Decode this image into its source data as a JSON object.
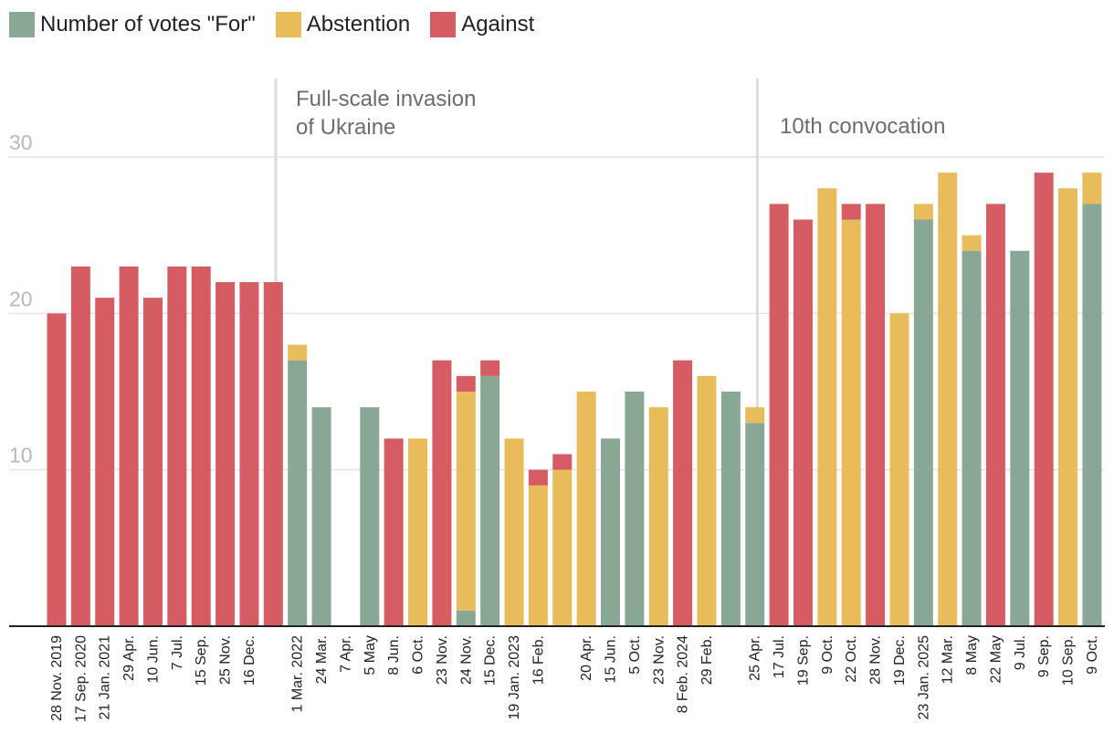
{
  "legend": {
    "for": "Number of votes \"For\"",
    "abstention": "Abstention",
    "against": "Against"
  },
  "colors": {
    "for": "#89a795",
    "abstention": "#e8bb5b",
    "against": "#d55c63"
  },
  "annotations": {
    "invasion_line1": "Full-scale invasion",
    "invasion_line2": "of Ukraine",
    "convocation": "10th convocation"
  },
  "chart_data": {
    "type": "bar",
    "stacked": true,
    "title": "",
    "xlabel": "",
    "ylabel": "",
    "ylim": [
      0,
      30
    ],
    "yticks": [
      10,
      20,
      30
    ],
    "grid": true,
    "legend_position": "top-left",
    "categories": [
      "28 Nov. 2019",
      "17 Sep. 2020",
      "21 Jan. 2021",
      "29 Apr.",
      "10 Jun.",
      "7 Jul.",
      "15 Sep.",
      "25 Nov.",
      "16 Dec.",
      "",
      "1 Mar. 2022",
      "24 Mar.",
      "7 Apr.",
      "5 May",
      "8 Jun.",
      "6 Oct.",
      "23 Nov.",
      "24 Nov.",
      "15 Dec.",
      "19 Jan. 2023",
      "16 Feb.",
      "",
      "20 Apr.",
      "15 Jun.",
      "5 Oct.",
      "23 Nov.",
      "8 Feb. 2024",
      "29 Feb.",
      "",
      "25 Apr.",
      "17 Jul.",
      "19 Sep.",
      "9 Oct.",
      "22 Oct.",
      "28 Nov.",
      "19 Dec.",
      "23 Jan. 2025",
      "12 Mar.",
      "8 May",
      "22 May",
      "9 Jul.",
      "9 Sep.",
      "10 Sep.",
      "9 Oct."
    ],
    "series": [
      {
        "name": "Number of votes \"For\"",
        "values": [
          0,
          0,
          0,
          0,
          0,
          0,
          0,
          0,
          0,
          0,
          17,
          14,
          0,
          14,
          0,
          0,
          0,
          1,
          16,
          0,
          0,
          0,
          0,
          12,
          15,
          0,
          0,
          0,
          15,
          13,
          0,
          0,
          0,
          0,
          0,
          0,
          26,
          0,
          24,
          0,
          24,
          0,
          0,
          27
        ]
      },
      {
        "name": "Abstention",
        "values": [
          0,
          0,
          0,
          0,
          0,
          0,
          0,
          0,
          0,
          0,
          1,
          0,
          0,
          0,
          0,
          12,
          0,
          14,
          0,
          12,
          9,
          10,
          15,
          0,
          0,
          14,
          0,
          16,
          0,
          1,
          0,
          0,
          28,
          26,
          0,
          20,
          1,
          29,
          1,
          0,
          0,
          0,
          28,
          2
        ]
      },
      {
        "name": "Against",
        "values": [
          20,
          23,
          21,
          23,
          21,
          23,
          23,
          22,
          22,
          22,
          0,
          0,
          0,
          0,
          12,
          0,
          17,
          1,
          1,
          0,
          1,
          1,
          0,
          0,
          0,
          0,
          17,
          0,
          0,
          0,
          27,
          26,
          0,
          1,
          27,
          0,
          0,
          0,
          0,
          27,
          0,
          29,
          0,
          0
        ]
      }
    ],
    "markers": [
      {
        "after_category_index": 9,
        "label": "Full-scale invasion of Ukraine"
      },
      {
        "after_category_index": 29,
        "label": "10th convocation"
      }
    ]
  }
}
